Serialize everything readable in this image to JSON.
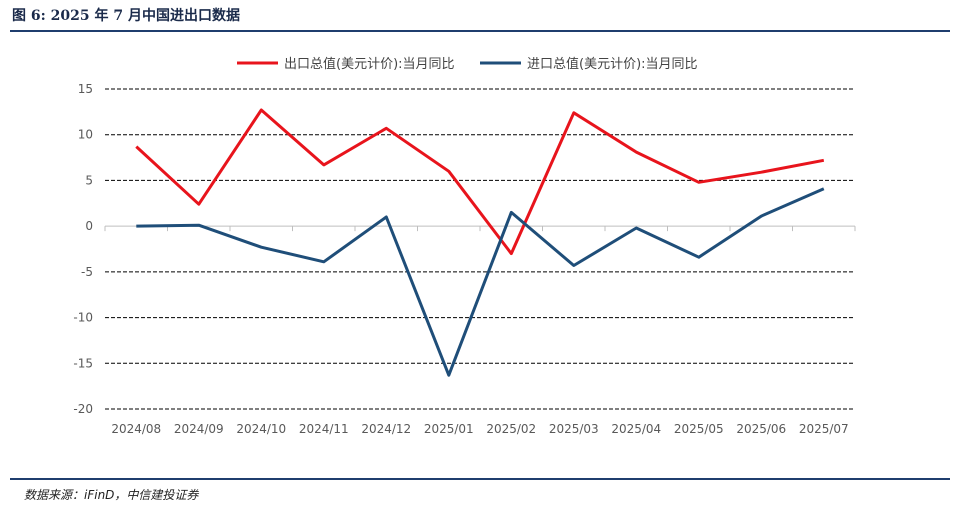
{
  "figure_title": "图 6: 2025 年 7 月中国进出口数据",
  "source_note": "数据来源：iFinD，中信建投证券",
  "chart_data": {
    "type": "line",
    "categories": [
      "2024/08",
      "2024/09",
      "2024/10",
      "2024/11",
      "2024/12",
      "2025/01",
      "2025/02",
      "2025/03",
      "2025/04",
      "2025/05",
      "2025/06",
      "2025/07"
    ],
    "series": [
      {
        "name": "出口总值(美元计价):当月同比",
        "color": "#e8141c",
        "values": [
          8.7,
          2.4,
          12.7,
          6.7,
          10.7,
          6.0,
          -3.0,
          12.4,
          8.1,
          4.8,
          5.9,
          7.2
        ]
      },
      {
        "name": "进口总值(美元计价):当月同比",
        "color": "#1f4e79",
        "values": [
          0.0,
          0.1,
          -2.3,
          -3.9,
          1.0,
          -16.3,
          1.5,
          -4.3,
          -0.2,
          -3.4,
          1.1,
          4.1
        ]
      }
    ],
    "ylim": [
      -20,
      15
    ],
    "yticks": [
      15,
      10,
      5,
      0,
      -5,
      -10,
      -15,
      -20
    ],
    "grid": true,
    "legend_position": "top"
  }
}
